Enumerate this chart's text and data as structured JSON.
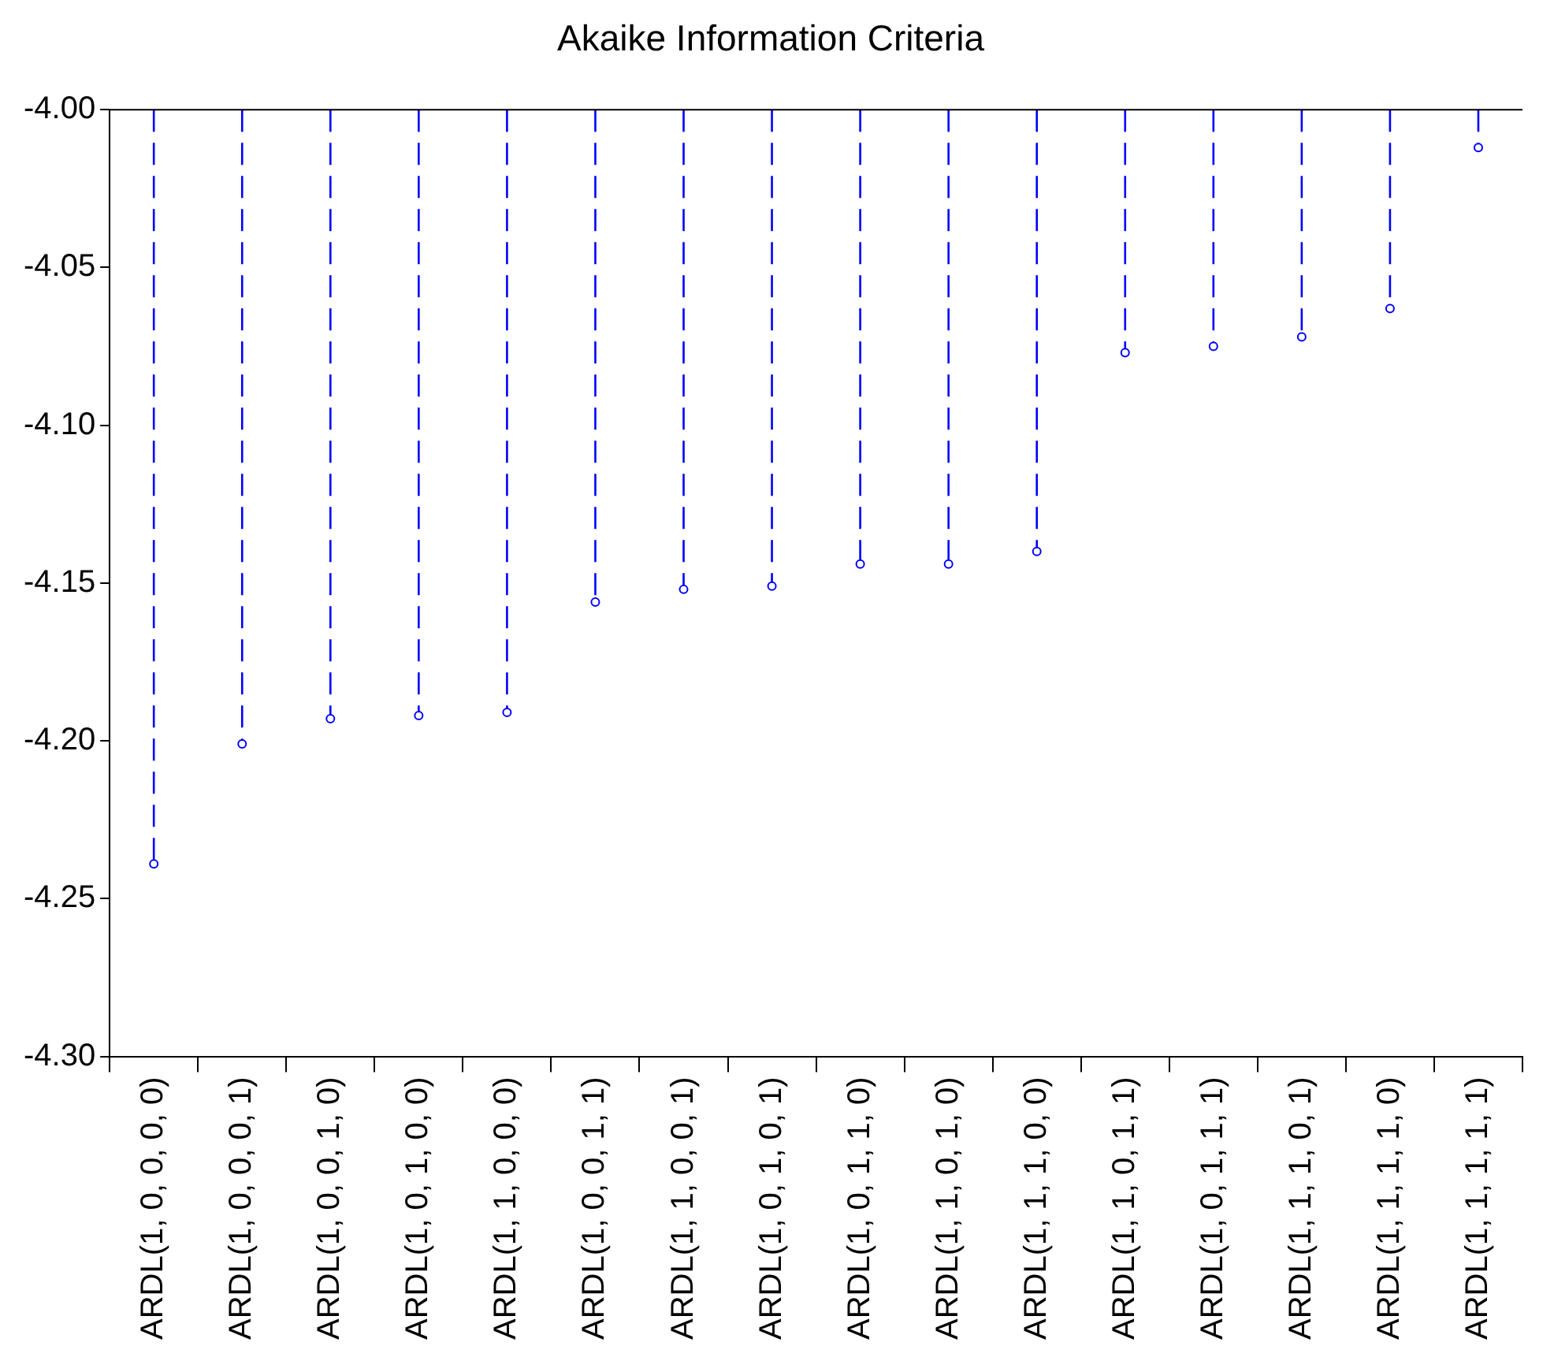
{
  "chart_data": {
    "type": "lollipop",
    "title": "Akaike Information Criteria",
    "categories": [
      "ARDL(1, 0, 0, 0, 0)",
      "ARDL(1, 0, 0, 0, 1)",
      "ARDL(1, 0, 0, 1, 0)",
      "ARDL(1, 0, 1, 0, 0)",
      "ARDL(1, 1, 0, 0, 0)",
      "ARDL(1, 0, 0, 1, 1)",
      "ARDL(1, 1, 0, 0, 1)",
      "ARDL(1, 0, 1, 0, 1)",
      "ARDL(1, 0, 1, 1, 0)",
      "ARDL(1, 1, 0, 1, 0)",
      "ARDL(1, 1, 1, 0, 0)",
      "ARDL(1, 1, 0, 1, 1)",
      "ARDL(1, 0, 1, 1, 1)",
      "ARDL(1, 1, 1, 0, 1)",
      "ARDL(1, 1, 1, 1, 0)",
      "ARDL(1, 1, 1, 1, 1)"
    ],
    "values": [
      -4.239,
      -4.201,
      -4.193,
      -4.192,
      -4.191,
      -4.156,
      -4.152,
      -4.151,
      -4.144,
      -4.144,
      -4.14,
      -4.077,
      -4.075,
      -4.072,
      -4.063,
      -4.012
    ],
    "color": "#0000ff",
    "marker": "circle",
    "line_style": "dashed",
    "grid": false,
    "ylim": [
      -4.3,
      -4.0
    ],
    "yticks": [
      {
        "value": -4.3,
        "label": "-4.30"
      },
      {
        "value": -4.25,
        "label": "-4.25"
      },
      {
        "value": -4.2,
        "label": "-4.20"
      },
      {
        "value": -4.15,
        "label": "-4.15"
      },
      {
        "value": -4.1,
        "label": "-4.10"
      },
      {
        "value": -4.05,
        "label": "-4.05"
      },
      {
        "value": -4.0,
        "label": "-4.00"
      }
    ]
  }
}
